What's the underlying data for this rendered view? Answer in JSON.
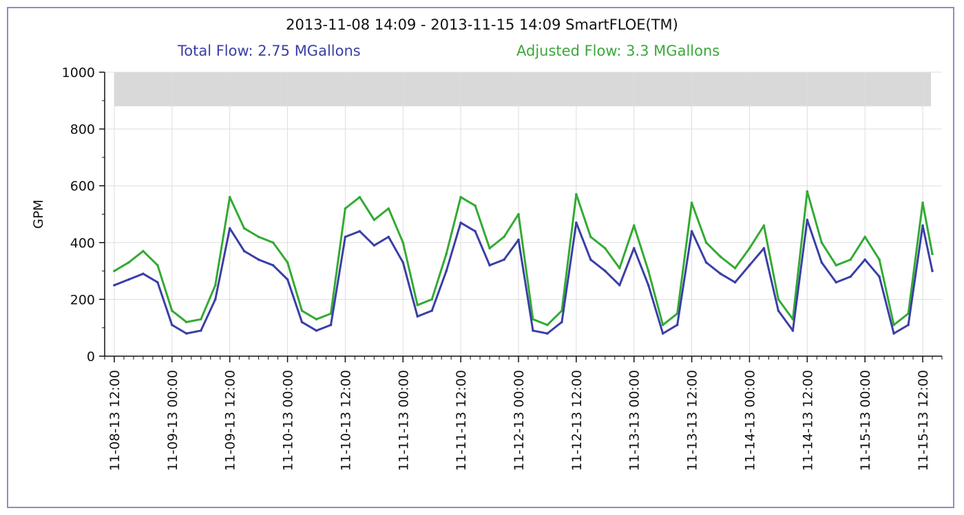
{
  "chart_data": {
    "type": "line",
    "title": "2013-11-08 14:09 - 2013-11-15 14:09 SmartFLOE(TM)",
    "subtitles": {
      "total": "Total Flow: 2.75 MGallons",
      "adjusted": "Adjusted Flow: 3.3 MGallons"
    },
    "ylabel": "GPM",
    "xlabel": "",
    "ylim": [
      0,
      1000
    ],
    "yticks": [
      "0",
      "200",
      "400",
      "600",
      "800",
      "1000"
    ],
    "xlim": [
      "11-08-13 10:00",
      "11-15-13 16:00"
    ],
    "xticks": [
      "11-08-13 12:00",
      "11-09-13 00:00",
      "11-09-13 12:00",
      "11-10-13 00:00",
      "11-10-13 12:00",
      "11-11-13 00:00",
      "11-11-13 12:00",
      "11-12-13 00:00",
      "11-12-13 12:00",
      "11-13-13 00:00",
      "11-13-13 12:00",
      "11-14-13 00:00",
      "11-14-13 12:00",
      "11-15-13 00:00",
      "11-15-13 12:00"
    ],
    "grid": true,
    "limit_band": [
      880,
      1000
    ],
    "colors": {
      "total": "#3b3fa6",
      "adjusted": "#33aa33",
      "band": "#d9d9d9"
    },
    "series": [
      {
        "name": "Total Flow",
        "x": [
          "11-08-13 12:00",
          "11-08-13 15:00",
          "11-08-13 18:00",
          "11-08-13 21:00",
          "11-09-13 00:00",
          "11-09-13 03:00",
          "11-09-13 06:00",
          "11-09-13 09:00",
          "11-09-13 12:00",
          "11-09-13 15:00",
          "11-09-13 18:00",
          "11-09-13 21:00",
          "11-10-13 00:00",
          "11-10-13 03:00",
          "11-10-13 06:00",
          "11-10-13 09:00",
          "11-10-13 12:00",
          "11-10-13 15:00",
          "11-10-13 18:00",
          "11-10-13 21:00",
          "11-11-13 00:00",
          "11-11-13 03:00",
          "11-11-13 06:00",
          "11-11-13 09:00",
          "11-11-13 12:00",
          "11-11-13 15:00",
          "11-11-13 18:00",
          "11-11-13 21:00",
          "11-12-13 00:00",
          "11-12-13 03:00",
          "11-12-13 06:00",
          "11-12-13 09:00",
          "11-12-13 12:00",
          "11-12-13 15:00",
          "11-12-13 18:00",
          "11-12-13 21:00",
          "11-13-13 00:00",
          "11-13-13 03:00",
          "11-13-13 06:00",
          "11-13-13 09:00",
          "11-13-13 12:00",
          "11-13-13 15:00",
          "11-13-13 18:00",
          "11-13-13 21:00",
          "11-14-13 00:00",
          "11-14-13 03:00",
          "11-14-13 06:00",
          "11-14-13 09:00",
          "11-14-13 12:00",
          "11-14-13 15:00",
          "11-14-13 18:00",
          "11-14-13 21:00",
          "11-15-13 00:00",
          "11-15-13 03:00",
          "11-15-13 06:00",
          "11-15-13 09:00",
          "11-15-13 12:00",
          "11-15-13 14:00"
        ],
        "values": [
          250,
          270,
          290,
          260,
          110,
          80,
          90,
          200,
          450,
          370,
          340,
          320,
          270,
          120,
          90,
          110,
          420,
          440,
          390,
          420,
          330,
          140,
          160,
          300,
          470,
          440,
          320,
          340,
          410,
          90,
          80,
          120,
          470,
          340,
          300,
          250,
          380,
          250,
          80,
          110,
          440,
          330,
          290,
          260,
          320,
          380,
          160,
          90,
          480,
          330,
          260,
          280,
          340,
          280,
          80,
          110,
          460,
          300
        ],
        "notes": []
      },
      {
        "name": "Adjusted Flow",
        "x": [
          "11-08-13 12:00",
          "11-08-13 15:00",
          "11-08-13 18:00",
          "11-08-13 21:00",
          "11-09-13 00:00",
          "11-09-13 03:00",
          "11-09-13 06:00",
          "11-09-13 09:00",
          "11-09-13 12:00",
          "11-09-13 15:00",
          "11-09-13 18:00",
          "11-09-13 21:00",
          "11-10-13 00:00",
          "11-10-13 03:00",
          "11-10-13 06:00",
          "11-10-13 09:00",
          "11-10-13 12:00",
          "11-10-13 15:00",
          "11-10-13 18:00",
          "11-10-13 21:00",
          "11-11-13 00:00",
          "11-11-13 03:00",
          "11-11-13 06:00",
          "11-11-13 09:00",
          "11-11-13 12:00",
          "11-11-13 15:00",
          "11-11-13 18:00",
          "11-11-13 21:00",
          "11-12-13 00:00",
          "11-12-13 03:00",
          "11-12-13 06:00",
          "11-12-13 09:00",
          "11-12-13 12:00",
          "11-12-13 15:00",
          "11-12-13 18:00",
          "11-12-13 21:00",
          "11-13-13 00:00",
          "11-13-13 03:00",
          "11-13-13 06:00",
          "11-13-13 09:00",
          "11-13-13 12:00",
          "11-13-13 15:00",
          "11-13-13 18:00",
          "11-13-13 21:00",
          "11-14-13 00:00",
          "11-14-13 03:00",
          "11-14-13 06:00",
          "11-14-13 09:00",
          "11-14-13 12:00",
          "11-14-13 15:00",
          "11-14-13 18:00",
          "11-14-13 21:00",
          "11-15-13 00:00",
          "11-15-13 03:00",
          "11-15-13 06:00",
          "11-15-13 09:00",
          "11-15-13 12:00",
          "11-15-13 14:00"
        ],
        "values": [
          300,
          330,
          370,
          320,
          160,
          120,
          130,
          250,
          560,
          450,
          420,
          400,
          330,
          160,
          130,
          150,
          520,
          560,
          480,
          520,
          400,
          180,
          200,
          360,
          560,
          530,
          380,
          420,
          500,
          130,
          110,
          160,
          570,
          420,
          380,
          310,
          460,
          300,
          110,
          150,
          540,
          400,
          350,
          310,
          380,
          460,
          200,
          130,
          580,
          400,
          320,
          340,
          420,
          340,
          110,
          150,
          540,
          360
        ]
      }
    ]
  }
}
